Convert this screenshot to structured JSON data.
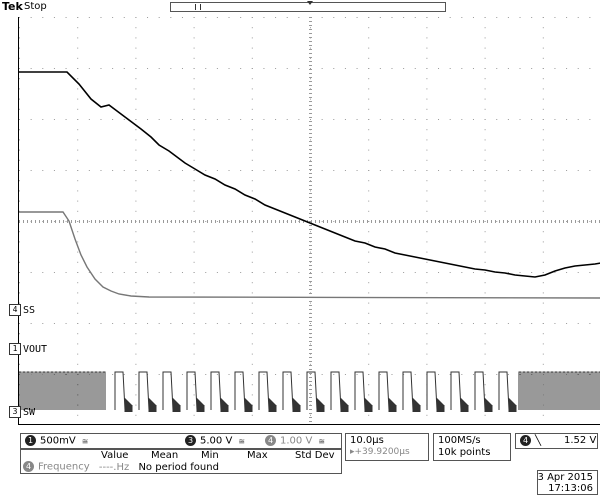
{
  "topbar": {
    "brand": "Tek",
    "acq_state": "Stop"
  },
  "channels": {
    "ss_label": "SS",
    "vout_label": "VOUT",
    "sw_label": "SW",
    "ss_num": "4",
    "vout_num": "1",
    "sw_num": "3"
  },
  "status": {
    "ch1_scale": "500mV",
    "ch3_scale": "5.00 V",
    "ch4_scale": "1.00 V",
    "ch1_num": "1",
    "ch3_num": "3",
    "ch4_num": "4",
    "timebase": "10.0µs",
    "trigger_pos": "▸+39.9200µs",
    "sample_rate": "100MS/s",
    "record_len": "10k points",
    "trigger_ch_num": "4",
    "trigger_slope": "╲",
    "trigger_level": "1.52 V",
    "date": "3 Apr 2015",
    "time": "17:13:06"
  },
  "measurement": {
    "headers": [
      "Value",
      "Mean",
      "Min",
      "Max",
      "Std Dev"
    ],
    "ch_num": "4",
    "label": "Frequency",
    "value": "----.Hz",
    "note": "No period found"
  },
  "icons": {
    "coupling": "bandwidth-icon",
    "trigger": "falling-edge-icon"
  }
}
